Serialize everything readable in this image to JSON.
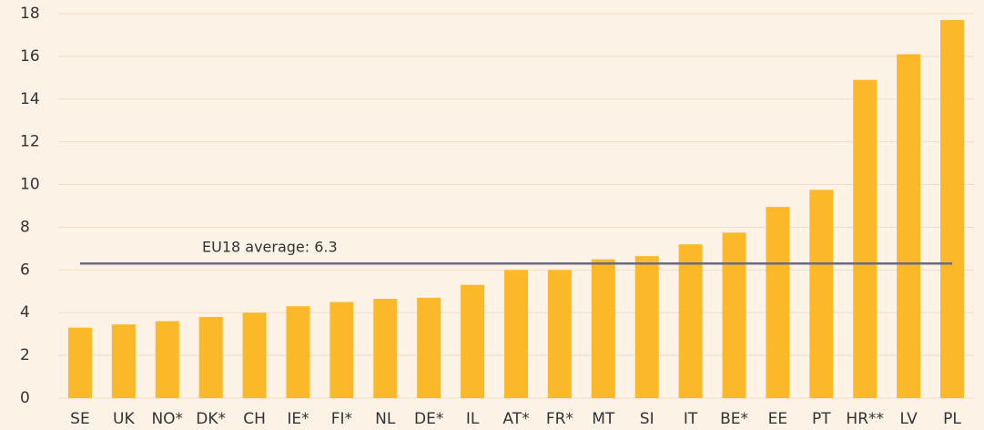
{
  "chart_data": {
    "type": "bar",
    "categories": [
      "SE",
      "UK",
      "NO*",
      "DK*",
      "CH",
      "IE*",
      "FI*",
      "NL",
      "DE*",
      "IL",
      "AT*",
      "FR*",
      "MT",
      "SI",
      "IT",
      "BE*",
      "EE",
      "PT",
      "HR**",
      "LV",
      "PL"
    ],
    "values": [
      3.3,
      3.45,
      3.6,
      3.8,
      4.0,
      4.3,
      4.5,
      4.65,
      4.7,
      5.3,
      6.0,
      6.0,
      6.5,
      6.65,
      7.2,
      7.75,
      8.95,
      9.75,
      14.9,
      16.1,
      17.7
    ],
    "color": "#fbb829",
    "ylim": [
      0,
      18
    ],
    "yticks": [
      0,
      2,
      4,
      6,
      8,
      10,
      12,
      14,
      16,
      18
    ],
    "grid": true,
    "average": 6.3,
    "average_color": "#6b6a80",
    "annotation": "EU18 average: 6.3"
  }
}
